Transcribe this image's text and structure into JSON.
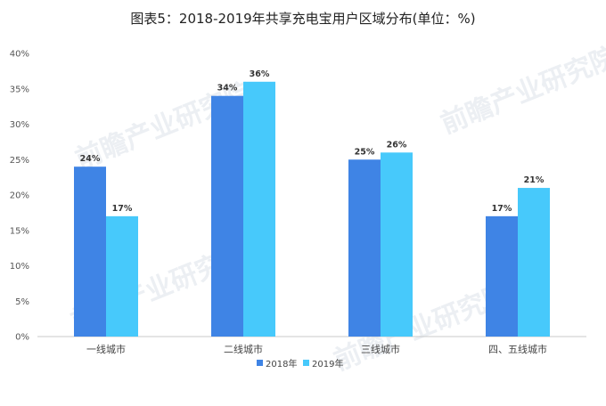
{
  "chart_data": {
    "type": "bar",
    "title": "图表5：2018-2019年共享充电宝用户区域分布(单位：%)",
    "categories": [
      "一线城市",
      "二线城市",
      "三线城市",
      "四、五线城市"
    ],
    "series": [
      {
        "name": "2018年",
        "color": "#3f84e5",
        "values": [
          24,
          34,
          25,
          17
        ],
        "labels": [
          "24%",
          "34%",
          "25%",
          "17%"
        ]
      },
      {
        "name": "2019年",
        "color": "#47c9fb",
        "values": [
          17,
          36,
          26,
          21
        ],
        "labels": [
          "17%",
          "36%",
          "26%",
          "21%"
        ]
      }
    ],
    "yticks": [
      "0%",
      "5%",
      "10%",
      "15%",
      "20%",
      "25%",
      "30%",
      "35%",
      "40%"
    ],
    "ylim": [
      0,
      40
    ],
    "xlabel": "",
    "ylabel": "",
    "legend_position": "bottom",
    "grid": false
  },
  "watermark": "前瞻产业研究院"
}
